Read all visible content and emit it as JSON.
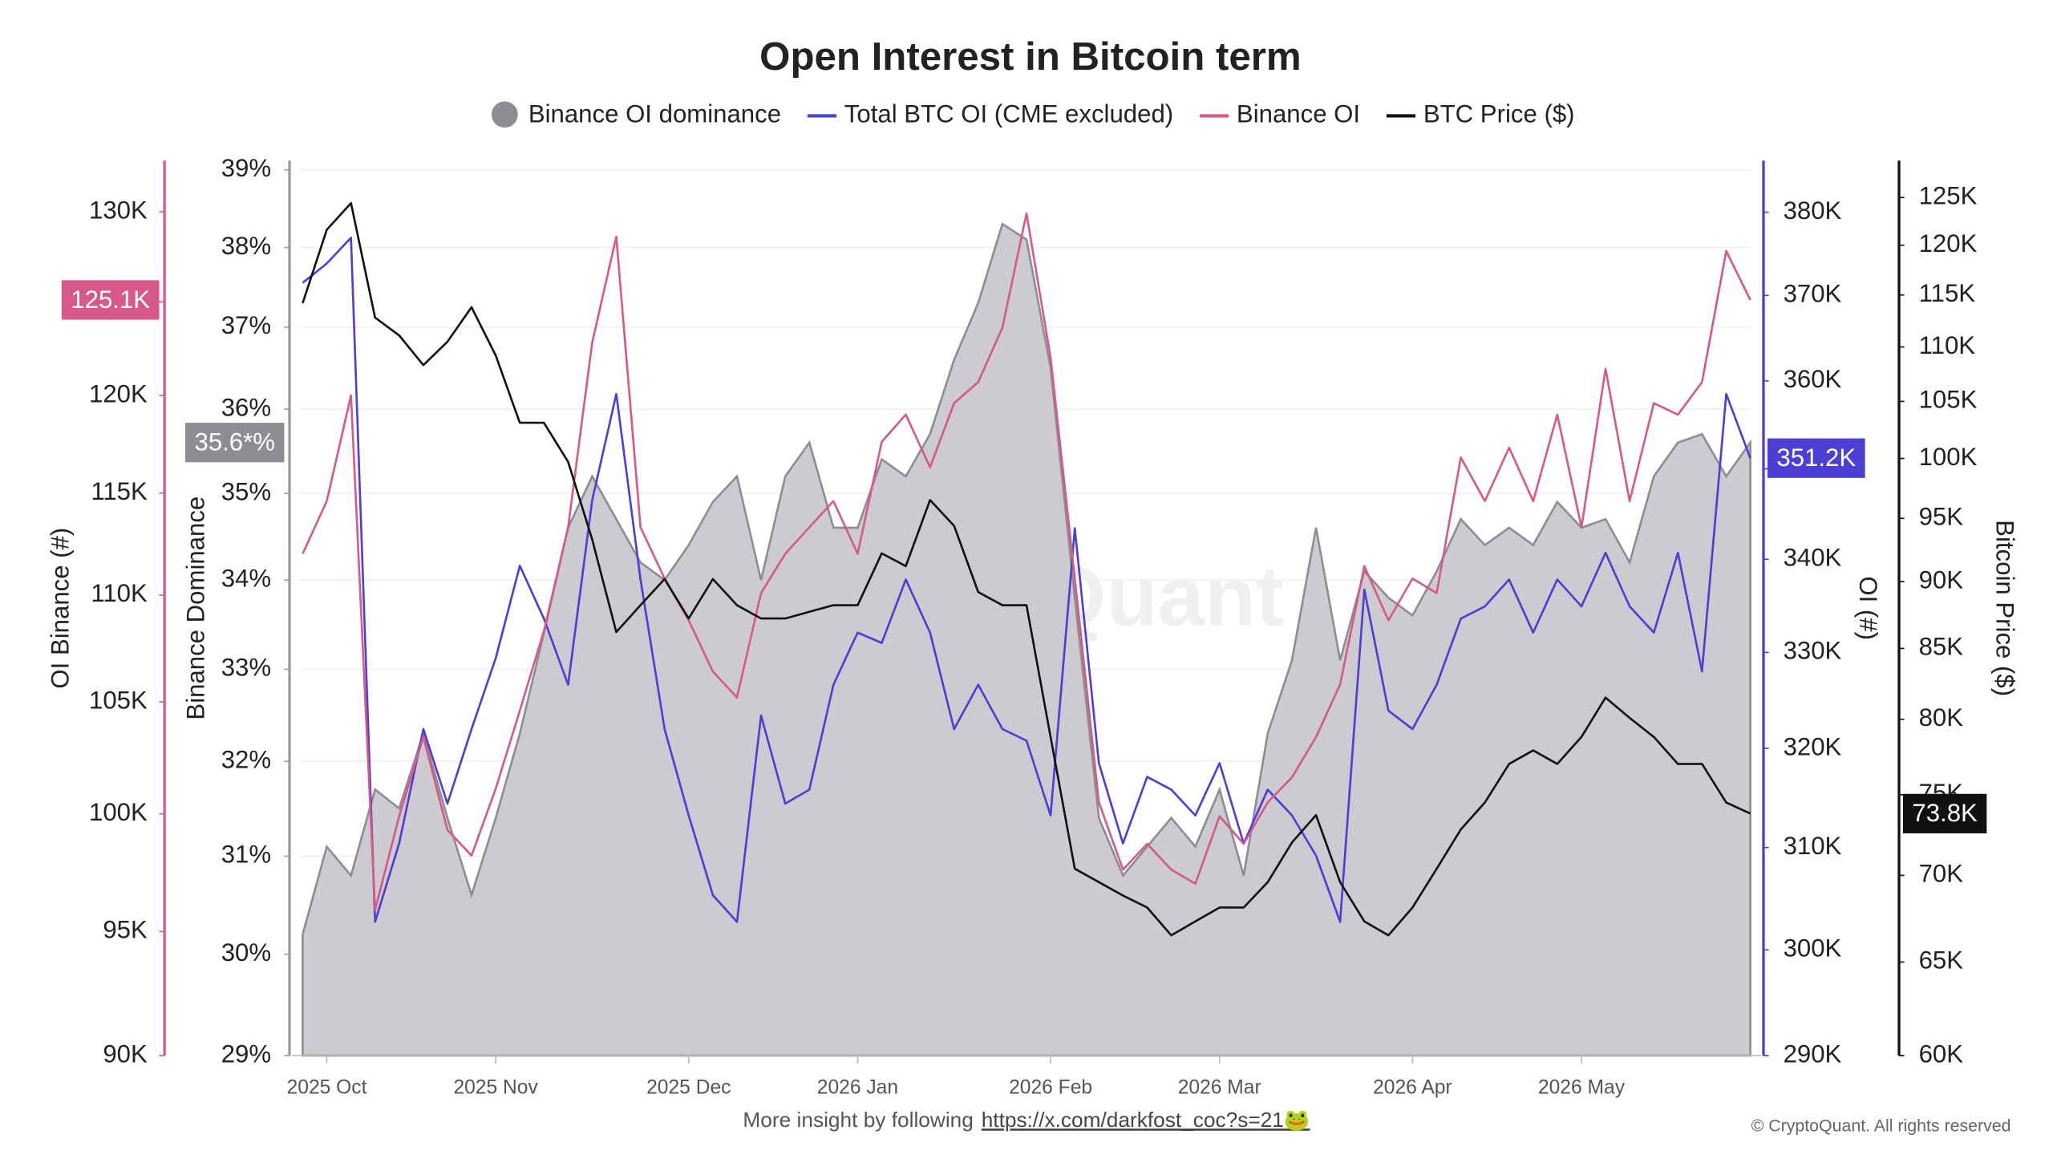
{
  "chart_data": {
    "type": "line",
    "title": "Open Interest in Bitcoin term",
    "watermark": "CryptoQuant",
    "grid": true,
    "categories": [
      null,
      "2025 Oct",
      null,
      null,
      null,
      null,
      null,
      null,
      "2025 Nov",
      null,
      null,
      null,
      null,
      null,
      null,
      null,
      "2025 Dec",
      null,
      null,
      null,
      null,
      null,
      null,
      "2026 Jan",
      null,
      null,
      null,
      null,
      null,
      null,
      null,
      "2026 Feb",
      null,
      null,
      null,
      null,
      null,
      null,
      "2026 Mar",
      null,
      null,
      null,
      null,
      null,
      null,
      null,
      "2026 Apr",
      null,
      null,
      null,
      null,
      null,
      null,
      "2026 May",
      null,
      null,
      null,
      null,
      null,
      null,
      null
    ],
    "series": [
      {
        "name": "Binance OI dominance",
        "style": "area",
        "color": "#8e8d93",
        "axis_title": "Binance Dominance",
        "log_scale": true,
        "ylim": [
          29,
          39
        ],
        "yticks": [
          {
            "value": 29,
            "label": "29%"
          },
          {
            "value": 30,
            "label": "30%"
          },
          {
            "value": 31,
            "label": "31%"
          },
          {
            "value": 32,
            "label": "32%"
          },
          {
            "value": 33,
            "label": "33%"
          },
          {
            "value": 34,
            "label": "34%"
          },
          {
            "value": 35,
            "label": "35%"
          },
          {
            "value": 36,
            "label": "36%"
          },
          {
            "value": 37,
            "label": "37%"
          },
          {
            "value": 38,
            "label": "38%"
          },
          {
            "value": 39,
            "label": "39%"
          }
        ],
        "end_label": "35.6*%",
        "values": [
          30.2,
          31.1,
          30.8,
          31.7,
          31.5,
          32.3,
          31.4,
          30.6,
          31.4,
          32.3,
          33.4,
          34.6,
          35.2,
          34.7,
          34.2,
          34.0,
          34.4,
          34.9,
          35.2,
          34.0,
          35.2,
          35.6,
          34.6,
          34.6,
          35.4,
          35.2,
          35.7,
          36.6,
          37.3,
          38.3,
          38.1,
          36.5,
          33.8,
          31.4,
          30.8,
          31.1,
          31.4,
          31.1,
          31.7,
          30.8,
          32.3,
          33.1,
          34.6,
          33.1,
          34.1,
          33.8,
          33.6,
          34.1,
          34.7,
          34.4,
          34.6,
          34.4,
          34.9,
          34.6,
          34.7,
          34.2,
          35.2,
          35.6,
          35.7,
          35.2,
          35.6
        ]
      },
      {
        "name": "Total BTC OI (CME excluded)",
        "style": "line",
        "color": "#4b3fd6",
        "axis_title": "OI (#)",
        "log_scale": true,
        "ylim": [
          290000,
          385200
        ],
        "yticks": [
          {
            "value": 290000,
            "label": "290K"
          },
          {
            "value": 300000,
            "label": "300K"
          },
          {
            "value": 310000,
            "label": "310K"
          },
          {
            "value": 320000,
            "label": "320K"
          },
          {
            "value": 330000,
            "label": "330K"
          },
          {
            "value": 340000,
            "label": "340K"
          },
          {
            "value": 350000,
            "label": "350K"
          },
          {
            "value": 360000,
            "label": "360K"
          },
          {
            "value": 370000,
            "label": "370K"
          },
          {
            "value": 380000,
            "label": "380K"
          }
        ],
        "end_label": "351.2K",
        "values": [
          371500,
          373800,
          376900,
          302700,
          310400,
          322000,
          314400,
          322000,
          329400,
          339300,
          333600,
          326600,
          346500,
          358500,
          337800,
          322000,
          313200,
          305300,
          302700,
          323400,
          314400,
          315800,
          326600,
          332100,
          331000,
          337800,
          332100,
          322000,
          326600,
          322000,
          320800,
          313200,
          343400,
          318500,
          310400,
          317100,
          315800,
          313200,
          318500,
          310400,
          315800,
          313200,
          309200,
          302700,
          336700,
          323900,
          322000,
          326600,
          333600,
          334900,
          337800,
          332100,
          337800,
          334900,
          340700,
          334900,
          332100,
          340700,
          328000,
          358500,
          351200
        ]
      },
      {
        "name": "Binance OI",
        "style": "line",
        "color": "#d6598a",
        "axis_title": "OI Binance (#)",
        "log_scale": true,
        "ylim": [
          90000,
          132400
        ],
        "yticks": [
          {
            "value": 90000,
            "label": "90K"
          },
          {
            "value": 95000,
            "label": "95K"
          },
          {
            "value": 100000,
            "label": "100K"
          },
          {
            "value": 105000,
            "label": "105K"
          },
          {
            "value": 110000,
            "label": "110K"
          },
          {
            "value": 115000,
            "label": "115K"
          },
          {
            "value": 120000,
            "label": "120K"
          },
          {
            "value": 125000,
            "label": "125K"
          },
          {
            "value": 130000,
            "label": "130K"
          }
        ],
        "end_label": "125.1K",
        "values": [
          112000,
          114600,
          120000,
          95900,
          99900,
          103400,
          99300,
          98200,
          101100,
          104600,
          108300,
          113300,
          122800,
          128600,
          113300,
          110800,
          108800,
          106400,
          105200,
          110100,
          112000,
          113300,
          114600,
          112000,
          117600,
          119000,
          116300,
          119600,
          120700,
          123600,
          129900,
          122000,
          110800,
          100500,
          97600,
          98700,
          97600,
          97000,
          99900,
          98700,
          100500,
          101600,
          103400,
          105800,
          111400,
          108800,
          110800,
          110100,
          116800,
          114600,
          117300,
          114600,
          119000,
          113300,
          121400,
          114600,
          119600,
          119000,
          120700,
          127800,
          125100
        ]
      },
      {
        "name": "BTC Price ($)",
        "style": "line",
        "color": "#111111",
        "axis_title": "Bitcoin Price ($)",
        "log_scale": true,
        "ylim": [
          60000,
          128000
        ],
        "yticks": [
          {
            "value": 60000,
            "label": "60K"
          },
          {
            "value": 65000,
            "label": "65K"
          },
          {
            "value": 70000,
            "label": "70K"
          },
          {
            "value": 75000,
            "label": "75K"
          },
          {
            "value": 80000,
            "label": "80K"
          },
          {
            "value": 85000,
            "label": "85K"
          },
          {
            "value": 90000,
            "label": "90K"
          },
          {
            "value": 95000,
            "label": "95K"
          },
          {
            "value": 100000,
            "label": "100K"
          },
          {
            "value": 105000,
            "label": "105K"
          },
          {
            "value": 110000,
            "label": "110K"
          },
          {
            "value": 115000,
            "label": "115K"
          },
          {
            "value": 120000,
            "label": "120K"
          },
          {
            "value": 125000,
            "label": "125K"
          }
        ],
        "end_label": "73.8K",
        "values": [
          114200,
          121600,
          124400,
          112800,
          111100,
          108300,
          110500,
          113800,
          109200,
          103100,
          103100,
          99700,
          93300,
          86200,
          88200,
          90200,
          87200,
          90200,
          88200,
          87200,
          87200,
          87700,
          88200,
          88200,
          92200,
          91200,
          96500,
          94400,
          89200,
          88200,
          88200,
          78800,
          70400,
          69600,
          68800,
          68100,
          66500,
          67300,
          68100,
          68100,
          69600,
          72000,
          73700,
          69600,
          67300,
          66500,
          68100,
          70400,
          72800,
          74500,
          77000,
          77900,
          77000,
          78800,
          81500,
          80100,
          78800,
          77000,
          77000,
          74500,
          73800
        ]
      }
    ],
    "footer": {
      "text": "More insight by following",
      "link": "https://x.com/darkfost_coc?s=21🐸",
      "copyright": "© CryptoQuant. All rights reserved"
    }
  }
}
